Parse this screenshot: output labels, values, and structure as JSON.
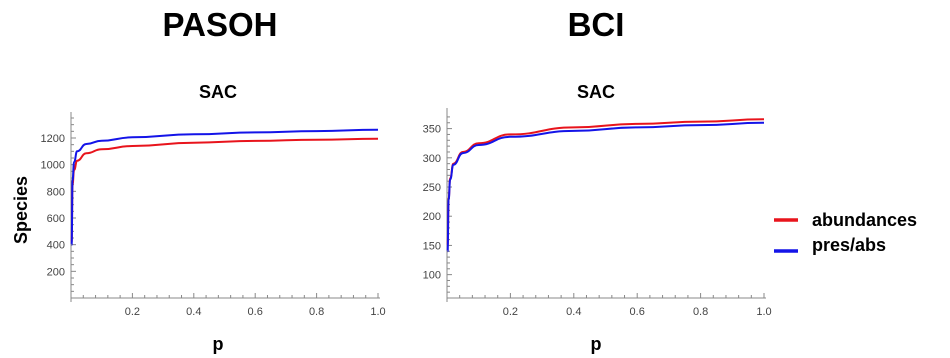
{
  "titles": {
    "left": "PASOH",
    "right": "BCI"
  },
  "legend": [
    {
      "label": "abundances",
      "color": "#e8141c"
    },
    {
      "label": "pres/abs",
      "color": "#1414e8"
    }
  ],
  "shared_ylabel": "Species",
  "chart_data": [
    {
      "type": "line",
      "title": "SAC",
      "xlabel": "p",
      "ylabel": "Species",
      "xlim": [
        0,
        1.0
      ],
      "ylim": [
        0,
        1350
      ],
      "xticks": [
        "0.2",
        "0.4",
        "0.6",
        "0.8",
        "1.0"
      ],
      "yticks": [
        "200",
        "400",
        "600",
        "800",
        "1000",
        "1200"
      ],
      "x": [
        0.002,
        0.005,
        0.01,
        0.02,
        0.05,
        0.1,
        0.2,
        0.4,
        0.6,
        0.8,
        1.0
      ],
      "series": [
        {
          "name": "abundances",
          "color": "#e8141c",
          "values": [
            420,
            850,
            960,
            1030,
            1085,
            1115,
            1140,
            1165,
            1178,
            1187,
            1195
          ]
        },
        {
          "name": "pres/abs",
          "color": "#1414e8",
          "values": [
            400,
            880,
            1020,
            1100,
            1155,
            1180,
            1205,
            1228,
            1242,
            1252,
            1262
          ]
        }
      ]
    },
    {
      "type": "line",
      "title": "SAC",
      "xlabel": "p",
      "ylabel": "",
      "xlim": [
        0,
        1.0
      ],
      "ylim": [
        60,
        375
      ],
      "xticks": [
        "0.2",
        "0.4",
        "0.6",
        "0.8",
        "1.0"
      ],
      "yticks": [
        "100",
        "150",
        "200",
        "250",
        "300",
        "350"
      ],
      "x": [
        0.002,
        0.005,
        0.01,
        0.02,
        0.05,
        0.1,
        0.2,
        0.4,
        0.6,
        0.8,
        1.0
      ],
      "series": [
        {
          "name": "abundances",
          "color": "#e8141c",
          "values": [
            150,
            230,
            265,
            290,
            310,
            325,
            340,
            352,
            358,
            362,
            366
          ]
        },
        {
          "name": "pres/abs",
          "color": "#1414e8",
          "values": [
            140,
            228,
            263,
            288,
            308,
            322,
            336,
            346,
            352,
            356,
            360
          ]
        }
      ]
    }
  ]
}
